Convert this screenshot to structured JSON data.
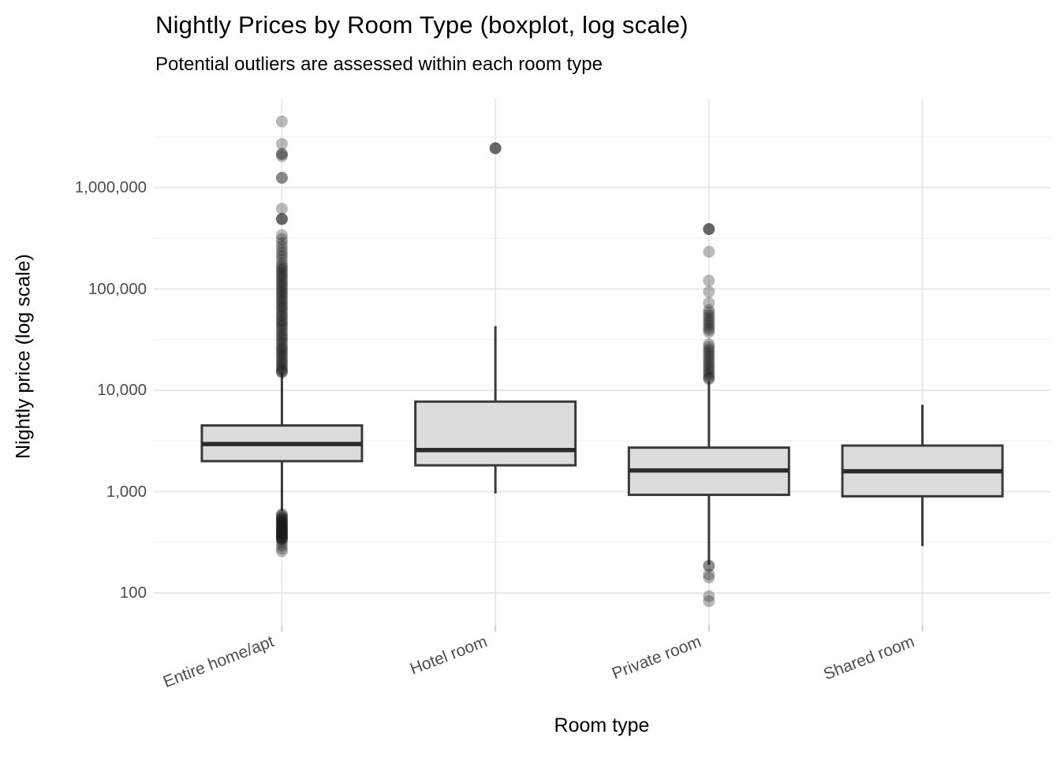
{
  "title": "Nightly Prices by Room Type (boxplot, log scale)",
  "subtitle": "Potential outliers are assessed within each room type",
  "x_axis": {
    "label": "Room type",
    "categories": [
      "Entire home/apt",
      "Hotel room",
      "Private room",
      "Shared room"
    ]
  },
  "y_axis": {
    "label": "Nightly price (log scale)",
    "ticks": [
      {
        "label": "100",
        "value": 100
      },
      {
        "label": "1,000",
        "value": 1000
      },
      {
        "label": "10,000",
        "value": 10000
      },
      {
        "label": "100,000",
        "value": 100000
      },
      {
        "label": "1,000,000",
        "value": 1000000
      }
    ]
  },
  "style": {
    "background": "#ffffff",
    "box_fill": "#dcdcdc",
    "box_stroke": "#3a3a3a",
    "median_stroke": "#2b2b2b",
    "whisker_stroke": "#3a3a3a",
    "grid_major": "#e8e8e8",
    "grid_minor": "#f1f1f1",
    "axis_tick_mark": "#cfcfcf",
    "axis_text": "#4d4d4d",
    "title_color": "#000000",
    "outlier_color": "#1a1a1a",
    "outlier_opacity": 0.3
  },
  "chart_data": {
    "type": "boxplot",
    "title": "Nightly Prices by Room Type (boxplot, log scale)",
    "subtitle": "Potential outliers are assessed within each room type",
    "xlabel": "Room type",
    "ylabel": "Nightly price (log scale)",
    "y_scale": "log10",
    "ylim": [
      48,
      7600000
    ],
    "grid": true,
    "categories": [
      "Entire home/apt",
      "Hotel room",
      "Private room",
      "Shared room"
    ],
    "series": [
      {
        "category": "Entire home/apt",
        "whisker_low": 645,
        "q1": 2000,
        "median": 2950,
        "q3": 4500,
        "whisker_high": 15100,
        "outliers_high": [
          4500000,
          2700000,
          2150000,
          2150000,
          2050000,
          1250000,
          1250000,
          620000,
          490000,
          490000,
          490000,
          340000,
          310000,
          285000,
          262000,
          242000,
          225000,
          210000,
          196000,
          180000,
          170000,
          162000,
          155000,
          148000,
          141000,
          135000,
          129000,
          123000,
          117000,
          112000,
          107000,
          102000,
          97000,
          93000,
          89000,
          85000,
          81000,
          77000,
          74000,
          70000,
          67000,
          64000,
          61000,
          58000,
          55000,
          53000,
          50000,
          48000,
          46000,
          44000,
          42000,
          40000,
          38000,
          36000,
          34500,
          33000,
          31500,
          30000,
          28500,
          27000,
          26000,
          25000,
          24000,
          23000,
          22000,
          21000,
          20000,
          19200,
          18400,
          17600,
          16900,
          16200,
          15600,
          15200,
          15000
        ],
        "outliers_low": [
          600,
          585,
          570,
          555,
          540,
          530,
          520,
          510,
          500,
          490,
          480,
          470,
          462,
          454,
          446,
          438,
          430,
          423,
          416,
          409,
          402,
          396,
          390,
          384,
          378,
          372,
          366,
          360,
          355,
          350,
          345,
          340,
          335,
          315,
          295,
          275,
          258
        ]
      },
      {
        "category": "Hotel room",
        "whisker_low": 960,
        "q1": 1820,
        "median": 2575,
        "q3": 7740,
        "whisker_high": 43000,
        "outliers_high": [
          2450000,
          2450000,
          2450000
        ],
        "outliers_low": []
      },
      {
        "category": "Private room",
        "whisker_low": 190,
        "q1": 930,
        "median": 1620,
        "q3": 2720,
        "whisker_high": 12300,
        "outliers_high": [
          390000,
          390000,
          390000,
          233000,
          121000,
          94000,
          73000,
          62000,
          58500,
          55000,
          52000,
          49000,
          46500,
          44000,
          41500,
          39500,
          37500,
          28500,
          27000,
          25500,
          24200,
          23000,
          21800,
          20700,
          19600,
          18600,
          17700,
          16800,
          16000,
          15200,
          14500,
          13800,
          13200,
          12900
        ],
        "outliers_low": [
          185,
          185,
          152,
          142,
          93,
          83
        ]
      },
      {
        "category": "Shared room",
        "whisker_low": 290,
        "q1": 900,
        "median": 1590,
        "q3": 2850,
        "whisker_high": 7200,
        "outliers_high": [],
        "outliers_low": []
      }
    ]
  }
}
